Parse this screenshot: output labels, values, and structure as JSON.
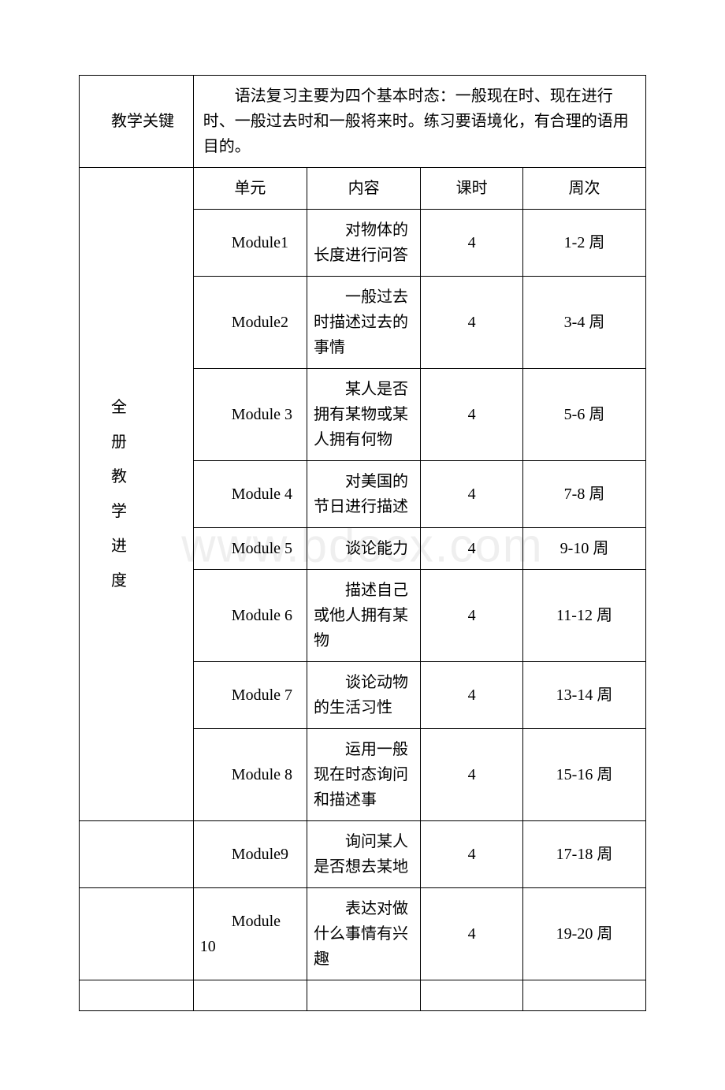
{
  "keypoint": {
    "label": "教学关键",
    "text": "语法复习主要为四个基本时态：一般现在时、现在进行时、一般过去时和一般将来时。练习要语境化，有合理的语用目的。"
  },
  "schedule": {
    "label_chars": [
      "全",
      "册",
      "教",
      "学",
      "进",
      "度"
    ],
    "headers": {
      "unit": "单元",
      "content": "内容",
      "hours": "课时",
      "week": "周次"
    },
    "rows": [
      {
        "unit": "Module1",
        "content": "对物体的长度进行问答",
        "hours": "4",
        "week": "1-2 周"
      },
      {
        "unit": "Module2",
        "content": "一般过去时描述过去的事情",
        "hours": "4",
        "week": "3-4 周"
      },
      {
        "unit": "Module 3",
        "content": "某人是否拥有某物或某人拥有何物",
        "hours": "4",
        "week": "5-6 周"
      },
      {
        "unit": "Module 4",
        "content": "对美国的节日进行描述",
        "hours": "4",
        "week": "7-8 周"
      },
      {
        "unit": "Module 5",
        "content": "谈论能力",
        "hours": "4",
        "week": "9-10 周"
      },
      {
        "unit": "Module 6",
        "content": "描述自己或他人拥有某物",
        "hours": "4",
        "week": "11-12 周"
      },
      {
        "unit": "Module 7",
        "content": "谈论动物的生活习性",
        "hours": "4",
        "week": "13-14 周"
      },
      {
        "unit": "Module 8",
        "content": "运用一般现在时态询问和描述事",
        "hours": "4",
        "week": "15-16 周"
      },
      {
        "unit": "Module9",
        "content": "询问某人是否想去某地",
        "hours": "4",
        "week": "17-18 周"
      },
      {
        "unit": "Module 10",
        "content": "表达对做什么事情有兴趣",
        "hours": "4",
        "week": "19-20 周"
      }
    ]
  },
  "watermark": "www.bdocx.com"
}
